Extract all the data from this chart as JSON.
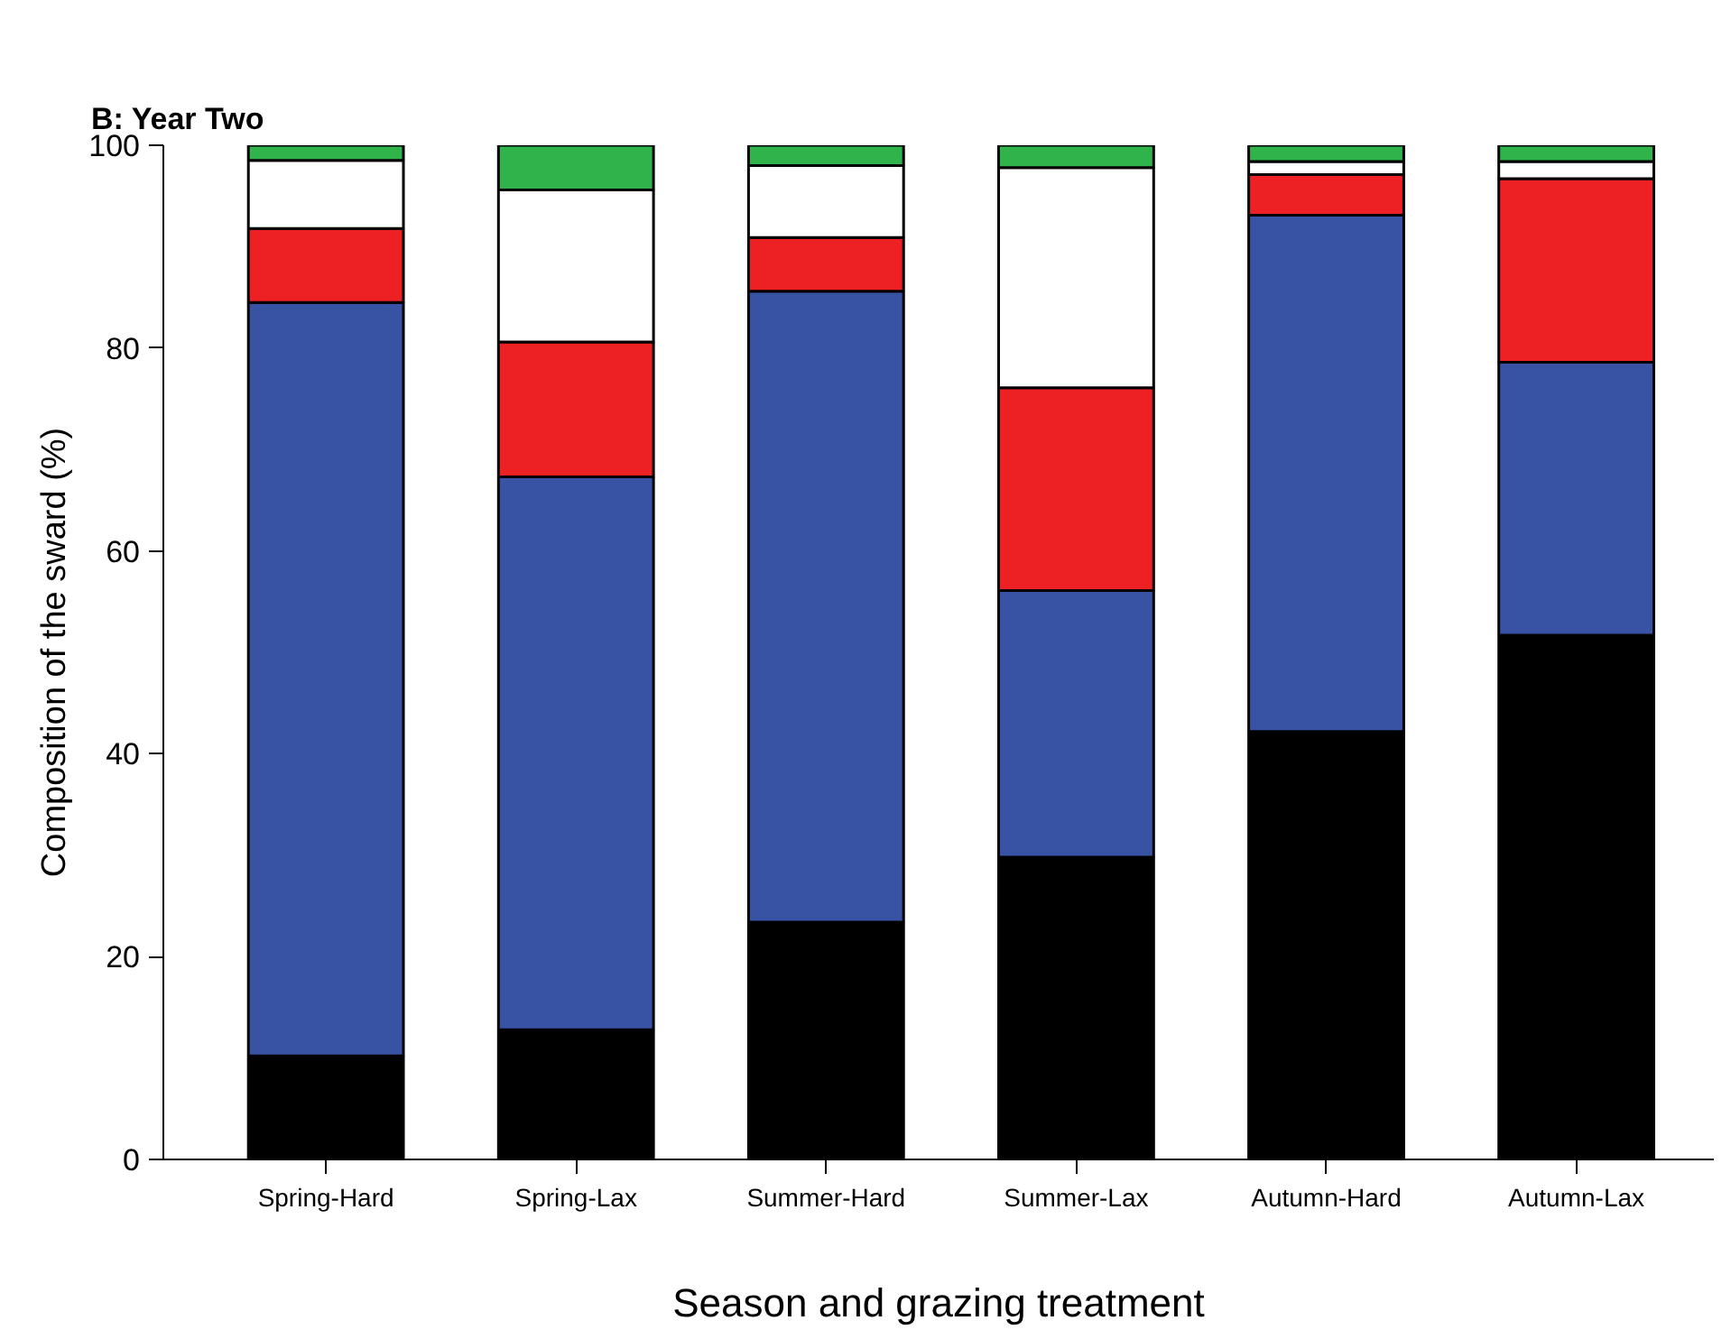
{
  "chart_data": {
    "type": "bar",
    "title": "B: Year Two",
    "xlabel": "Season and grazing treatment",
    "ylabel": "Composition of the sward (%)",
    "categories": [
      "Spring-Hard",
      "Spring-Lax",
      "Summer-Hard",
      "Summer-Lax",
      "Autumn-Hard",
      "Autumn-Lax"
    ],
    "stacked": true,
    "ylim": [
      0,
      100
    ],
    "yticks": [
      0,
      20,
      40,
      60,
      80,
      100
    ],
    "grid": false,
    "series": [
      {
        "color": "#000000",
        "values": [
          10.2,
          12.8,
          23.4,
          29.8,
          42.2,
          51.7
        ]
      },
      {
        "color": "#3853a4",
        "values": [
          74.3,
          54.5,
          62.2,
          26.3,
          50.9,
          26.9
        ]
      },
      {
        "color": "#ed2024",
        "values": [
          7.3,
          13.3,
          5.3,
          20.0,
          4.0,
          18.1
        ]
      },
      {
        "color": "#ffffff",
        "values": [
          6.7,
          15.0,
          7.1,
          21.7,
          1.3,
          1.7
        ]
      },
      {
        "color": "#2fb34a",
        "values": [
          1.5,
          4.4,
          2.0,
          2.2,
          1.6,
          1.6
        ]
      }
    ]
  }
}
